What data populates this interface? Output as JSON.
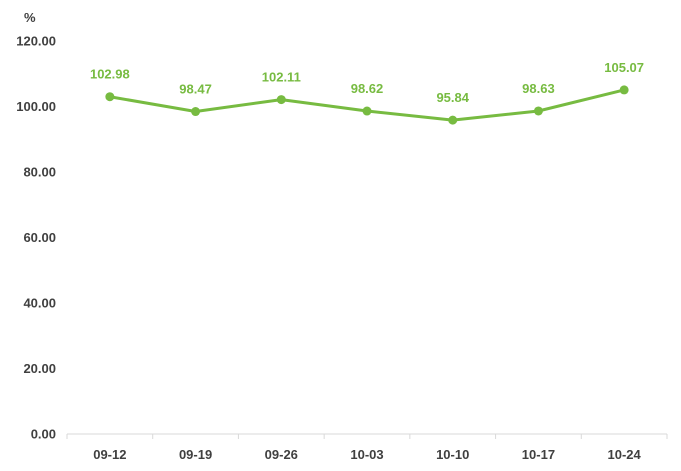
{
  "chart_data": {
    "type": "line",
    "title": "",
    "xlabel": "",
    "ylabel": "%",
    "categories": [
      "09-12",
      "09-19",
      "09-26",
      "10-03",
      "10-10",
      "10-17",
      "10-24"
    ],
    "series": [
      {
        "values": [
          102.98,
          98.47,
          102.11,
          98.62,
          95.84,
          98.63,
          105.07
        ],
        "data_labels": [
          "102.98",
          "98.47",
          "102.11",
          "98.62",
          "95.84",
          "98.63",
          "105.07"
        ],
        "color": "#77bb41"
      }
    ],
    "yticks": [
      0,
      20,
      40,
      60,
      80,
      100,
      120
    ],
    "ytick_labels": [
      "0.00",
      "20.00",
      "40.00",
      "60.00",
      "80.00",
      "100.00",
      "120.00"
    ],
    "ylim": [
      0,
      120
    ],
    "grid": false,
    "legend": "none",
    "axis_color": "#d9d9d9",
    "text_color": "#404040"
  }
}
